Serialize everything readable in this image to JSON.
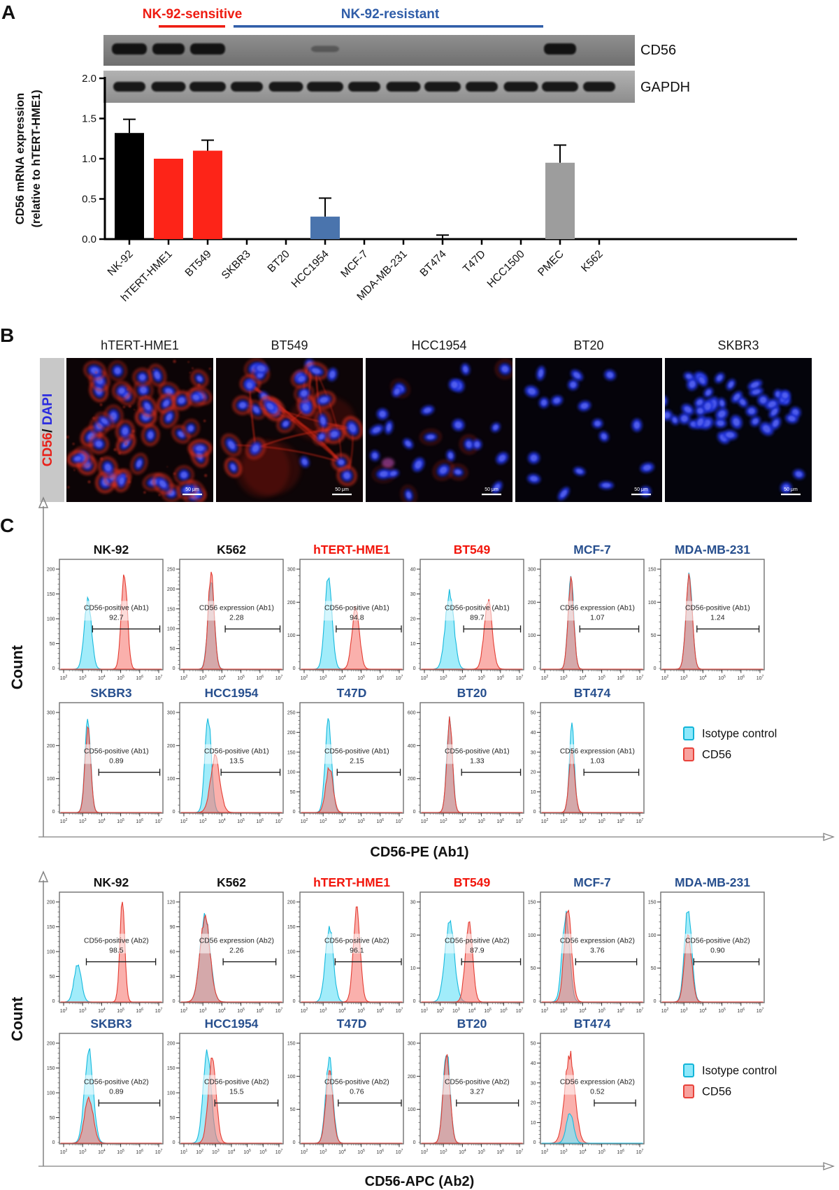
{
  "panelA": {
    "panel_label": "A",
    "group_labels": [
      {
        "text": "NK-92-sensitive",
        "color": "#ee1b11"
      },
      {
        "text": "NK-92-resistant",
        "color": "#2f5da8"
      }
    ],
    "gel_labels": [
      "CD56",
      "GAPDH"
    ],
    "gel_bands": {
      "cd56_strong_lanes": [
        0,
        1,
        2,
        11
      ],
      "cd56_faint_lanes": [
        5
      ],
      "gapdh_lanes": [
        0,
        1,
        2,
        3,
        4,
        5,
        6,
        7,
        8,
        9,
        10,
        11,
        12
      ]
    },
    "chart_data": {
      "type": "bar",
      "ylabel_line1": "CD56 mRNA expression",
      "ylabel_line2": "(relative to hTERT-HME1)",
      "ylim": [
        0,
        2.0
      ],
      "yticks": [
        "0.0",
        "0.5",
        "1.0",
        "1.5",
        "2.0"
      ],
      "categories": [
        "NK-92",
        "hTERT-HME1",
        "BT549",
        "SKBR3",
        "BT20",
        "HCC1954",
        "MCF-7",
        "MDA-MB-231",
        "BT474",
        "T47D",
        "HCC1500",
        "PMEC",
        "K562"
      ],
      "values": [
        1.32,
        1.0,
        1.1,
        0,
        0,
        0.28,
        0,
        0,
        0.01,
        0,
        0,
        0.95,
        0
      ],
      "errors": [
        0.17,
        0,
        0.13,
        0,
        0,
        0.23,
        0,
        0,
        0.04,
        0,
        0,
        0.22,
        0
      ],
      "colors": [
        "#000000",
        "#fd2418",
        "#fd2418",
        "#000000",
        "#000000",
        "#4a74ad",
        "#000000",
        "#000000",
        "#000000",
        "#000000",
        "#000000",
        "#9d9d9d",
        "#000000"
      ]
    }
  },
  "panelB": {
    "panel_label": "B",
    "stain_label": {
      "cd56": "CD56",
      "sep": "/ ",
      "dapi": "DAPI"
    },
    "stain_colors": {
      "cd56": "#e8211a",
      "sep": "#111111",
      "dapi": "#2a2ae0"
    },
    "scale_bar": "50 μm",
    "images": [
      {
        "title": "hTERT-HME1",
        "stain": "strong",
        "nuclei": 46,
        "bg": "#0c0406",
        "cluster": false
      },
      {
        "title": "BT549",
        "stain": "network",
        "nuclei": 30,
        "bg": "#0d0507",
        "cluster": false
      },
      {
        "title": "HCC1954",
        "stain": "faint",
        "nuclei": 26,
        "bg": "#080309",
        "cluster": false
      },
      {
        "title": "BT20",
        "stain": "none",
        "nuclei": 18,
        "bg": "#05030a",
        "cluster": false
      },
      {
        "title": "SKBR3",
        "stain": "none",
        "nuclei": 44,
        "bg": "#04040b",
        "cluster": true
      }
    ]
  },
  "panelC": {
    "panel_label": "C",
    "count_label": "Count",
    "legend": [
      {
        "label": "Isotype control",
        "fill": "#8ce8fb",
        "stroke": "#12b5d8"
      },
      {
        "label": "CD56",
        "fill": "#f8a29e",
        "stroke": "#e8423a"
      }
    ],
    "hist_colors": {
      "cyan_fill": "rgba(125,228,248,0.72)",
      "cyan_stroke": "#17b9dd",
      "red_fill": "rgba(247,124,117,0.60)",
      "red_stroke": "#e43d33"
    },
    "sets": [
      {
        "xlabel": "CD56-PE (Ab1)",
        "plots": [
          {
            "title": "NK-92",
            "tc": "#111111",
            "label": "CD56-positive (Ab1)",
            "value": "92.7",
            "yticks": [
              50,
              100,
              150,
              200
            ],
            "xexp": [
              2,
              7
            ],
            "peaks": [
              {
                "c": "cyan",
                "x": 0.27,
                "h": 0.69,
                "w": 0.05
              },
              {
                "c": "red",
                "x": 0.63,
                "h": 0.96,
                "w": 0.042
              }
            ],
            "gate": [
              0.32,
              0.97
            ]
          },
          {
            "title": "K562",
            "tc": "#111111",
            "label": "CD56 expression (Ab1)",
            "value": "2.28",
            "yticks": [
              50,
              100,
              150,
              200,
              250
            ],
            "xexp": [
              2,
              7
            ],
            "peaks": [
              {
                "c": "cyan",
                "x": 0.3,
                "h": 0.86,
                "w": 0.045
              },
              {
                "c": "red",
                "x": 0.3,
                "h": 0.96,
                "w": 0.043
              }
            ],
            "gate": [
              0.44,
              0.97
            ]
          },
          {
            "title": "hTERT-HME1",
            "tc": "#f2150b",
            "label": "CD56-positive (Ab1)",
            "value": "94.8",
            "yticks": [
              100,
              200,
              300
            ],
            "xexp": [
              2,
              7
            ],
            "peaks": [
              {
                "c": "cyan",
                "x": 0.27,
                "h": 0.93,
                "w": 0.05
              },
              {
                "c": "red",
                "x": 0.54,
                "h": 0.6,
                "w": 0.052
              }
            ],
            "gate": [
              0.35,
              0.98
            ]
          },
          {
            "title": "BT549",
            "tc": "#f2150b",
            "label": "CD56-positive (Ab1)",
            "value": "89.7",
            "yticks": [
              10,
              20,
              30,
              40
            ],
            "xexp": [
              2,
              7
            ],
            "peaks": [
              {
                "c": "cyan",
                "x": 0.28,
                "h": 0.76,
                "w": 0.06
              },
              {
                "c": "red",
                "x": 0.66,
                "h": 0.68,
                "w": 0.055
              }
            ],
            "gate": [
              0.42,
              0.97
            ]
          },
          {
            "title": "MCF-7",
            "tc": "#274f8e",
            "label": "CD56 expression (Ab1)",
            "value": "1.07",
            "yticks": [
              100,
              200,
              300
            ],
            "xexp": [
              2,
              7
            ],
            "peaks": [
              {
                "c": "cyan",
                "x": 0.29,
                "h": 0.93,
                "w": 0.04
              },
              {
                "c": "red",
                "x": 0.29,
                "h": 0.88,
                "w": 0.04
              }
            ],
            "gate": [
              0.38,
              0.95
            ]
          },
          {
            "title": "MDA-MB-231",
            "tc": "#274f8e",
            "label": "CD56-positive (Ab1)",
            "value": "1.24",
            "yticks": [
              50,
              100,
              150
            ],
            "xexp": [
              2,
              7
            ],
            "peaks": [
              {
                "c": "cyan",
                "x": 0.27,
                "h": 0.92,
                "w": 0.045
              },
              {
                "c": "red",
                "x": 0.27,
                "h": 0.9,
                "w": 0.045
              }
            ],
            "gate": [
              0.35,
              0.95
            ]
          },
          {
            "title": "SKBR3",
            "tc": "#274f8e",
            "label": "CD56-positive (Ab1)",
            "value": "0.89",
            "yticks": [
              100,
              200,
              300
            ],
            "xexp": [
              2,
              7
            ],
            "peaks": [
              {
                "c": "cyan",
                "x": 0.27,
                "h": 0.93,
                "w": 0.04
              },
              {
                "c": "red",
                "x": 0.27,
                "h": 0.82,
                "w": 0.04
              }
            ],
            "gate": [
              0.38,
              0.97
            ]
          },
          {
            "title": "HCC1954",
            "tc": "#274f8e",
            "label": "CD56-positive (Ab1)",
            "value": "13.5",
            "yticks": [
              100,
              200,
              300
            ],
            "xexp": [
              2,
              7
            ],
            "peaks": [
              {
                "c": "cyan",
                "x": 0.27,
                "h": 0.93,
                "w": 0.045
              },
              {
                "c": "red",
                "x": 0.34,
                "h": 0.55,
                "w": 0.065
              }
            ],
            "gate": [
              0.4,
              0.97
            ]
          },
          {
            "title": "T47D",
            "tc": "#274f8e",
            "label": "CD56-positive (Ab1)",
            "value": "2.15",
            "yticks": [
              50,
              100,
              150,
              200,
              250
            ],
            "xexp": [
              2,
              7
            ],
            "peaks": [
              {
                "c": "cyan",
                "x": 0.27,
                "h": 0.9,
                "w": 0.045
              },
              {
                "c": "red",
                "x": 0.28,
                "h": 0.45,
                "w": 0.05
              }
            ],
            "gate": [
              0.36,
              0.97
            ]
          },
          {
            "title": "BT20",
            "tc": "#274f8e",
            "label": "CD56-positive (Ab1)",
            "value": "1.33",
            "yticks": [
              200,
              400,
              600
            ],
            "xexp": [
              2,
              7
            ],
            "peaks": [
              {
                "c": "cyan",
                "x": 0.28,
                "h": 0.93,
                "w": 0.04
              },
              {
                "c": "red",
                "x": 0.28,
                "h": 0.91,
                "w": 0.04
              }
            ],
            "gate": [
              0.4,
              0.97
            ]
          },
          {
            "title": "BT474",
            "tc": "#274f8e",
            "label": "CD56 expression (Ab1)",
            "value": "1.03",
            "yticks": [
              10,
              20,
              30,
              40,
              50
            ],
            "xexp": [
              2,
              7
            ],
            "peaks": [
              {
                "c": "cyan",
                "x": 0.3,
                "h": 0.86,
                "w": 0.035
              },
              {
                "c": "red",
                "x": 0.3,
                "h": 0.6,
                "w": 0.04
              }
            ],
            "gate": [
              0.42,
              0.95
            ]
          }
        ]
      },
      {
        "xlabel": "CD56-APC (Ab2)",
        "plots": [
          {
            "title": "NK-92",
            "tc": "#111111",
            "label": "CD56-positive (Ab2)",
            "value": "98.5",
            "yticks": [
              50,
              100,
              150,
              200
            ],
            "xexp": [
              2,
              7
            ],
            "peaks": [
              {
                "c": "cyan",
                "x": 0.17,
                "h": 0.38,
                "w": 0.05
              },
              {
                "c": "red",
                "x": 0.61,
                "h": 0.98,
                "w": 0.035
              }
            ],
            "gate": [
              0.26,
              0.93
            ]
          },
          {
            "title": "K562",
            "tc": "#111111",
            "label": "CD56 expression (Ab2)",
            "value": "2.26",
            "yticks": [
              30,
              60,
              90,
              120
            ],
            "xexp": [
              2,
              7
            ],
            "peaks": [
              {
                "c": "cyan",
                "x": 0.24,
                "h": 0.86,
                "w": 0.07
              },
              {
                "c": "red",
                "x": 0.24,
                "h": 0.83,
                "w": 0.07
              }
            ],
            "gate": [
              0.42,
              0.93
            ]
          },
          {
            "title": "hTERT-HME1",
            "tc": "#f2150b",
            "label": "CD56-positive (Ab2)",
            "value": "96.1",
            "yticks": [
              50,
              100,
              150,
              200
            ],
            "xexp": [
              2,
              7
            ],
            "peaks": [
              {
                "c": "cyan",
                "x": 0.28,
                "h": 0.74,
                "w": 0.055
              },
              {
                "c": "red",
                "x": 0.55,
                "h": 0.91,
                "w": 0.048
              }
            ],
            "gate": [
              0.34,
              0.98
            ]
          },
          {
            "title": "BT549",
            "tc": "#f2150b",
            "label": "CD56-positive (Ab2)",
            "value": "87.9",
            "yticks": [
              10,
              20,
              30
            ],
            "xexp": [
              1,
              7
            ],
            "peaks": [
              {
                "c": "cyan",
                "x": 0.28,
                "h": 0.8,
                "w": 0.065
              },
              {
                "c": "red",
                "x": 0.47,
                "h": 0.8,
                "w": 0.05
              }
            ],
            "gate": [
              0.4,
              0.97
            ]
          },
          {
            "title": "MCF-7",
            "tc": "#274f8e",
            "label": "CD56 expression (Ab2)",
            "value": "3.76",
            "yticks": [
              50,
              100,
              150
            ],
            "xexp": [
              2,
              7
            ],
            "peaks": [
              {
                "c": "cyan",
                "x": 0.24,
                "h": 0.86,
                "w": 0.052
              },
              {
                "c": "red",
                "x": 0.26,
                "h": 0.91,
                "w": 0.052
              }
            ],
            "gate": [
              0.34,
              0.93
            ]
          },
          {
            "title": "MDA-MB-231",
            "tc": "#274f8e",
            "label": "CD56-positive (Ab2)",
            "value": "0.90",
            "yticks": [
              50,
              100,
              150
            ],
            "xexp": [
              2,
              7
            ],
            "peaks": [
              {
                "c": "cyan",
                "x": 0.26,
                "h": 0.95,
                "w": 0.05
              },
              {
                "c": "red",
                "x": 0.26,
                "h": 0.68,
                "w": 0.05
              }
            ],
            "gate": [
              0.32,
              0.95
            ]
          },
          {
            "title": "SKBR3",
            "tc": "#274f8e",
            "label": "CD56-positive (Ab2)",
            "value": "0.89",
            "yticks": [
              50,
              100,
              150,
              200
            ],
            "xexp": [
              2,
              7
            ],
            "peaks": [
              {
                "c": "cyan",
                "x": 0.28,
                "h": 0.92,
                "w": 0.06
              },
              {
                "c": "red",
                "x": 0.28,
                "h": 0.45,
                "w": 0.06
              }
            ],
            "gate": [
              0.38,
              0.97
            ]
          },
          {
            "title": "HCC1954",
            "tc": "#274f8e",
            "label": "CD56-positive (Ab2)",
            "value": "15.5",
            "yticks": [
              50,
              100,
              150,
              200
            ],
            "xexp": [
              1,
              7
            ],
            "peaks": [
              {
                "c": "cyan",
                "x": 0.26,
                "h": 0.93,
                "w": 0.055
              },
              {
                "c": "red",
                "x": 0.31,
                "h": 0.84,
                "w": 0.055
              }
            ],
            "gate": [
              0.34,
              0.95
            ]
          },
          {
            "title": "T47D",
            "tc": "#274f8e",
            "label": "CD56-positive (Ab2)",
            "value": "0.76",
            "yticks": [
              50,
              100,
              150
            ],
            "xexp": [
              2,
              7
            ],
            "peaks": [
              {
                "c": "cyan",
                "x": 0.28,
                "h": 0.84,
                "w": 0.05
              },
              {
                "c": "red",
                "x": 0.28,
                "h": 0.7,
                "w": 0.05
              }
            ],
            "gate": [
              0.37,
              0.98
            ]
          },
          {
            "title": "BT20",
            "tc": "#274f8e",
            "label": "CD56-positive (Ab2)",
            "value": "3.27",
            "yticks": [
              100,
              200,
              300
            ],
            "xexp": [
              2,
              7
            ],
            "peaks": [
              {
                "c": "cyan",
                "x": 0.25,
                "h": 0.93,
                "w": 0.048
              },
              {
                "c": "red",
                "x": 0.25,
                "h": 0.87,
                "w": 0.048
              }
            ],
            "gate": [
              0.35,
              0.95
            ]
          },
          {
            "title": "BT474",
            "tc": "#274f8e",
            "label": "CD56 expression (Ab2)",
            "value": "0.52",
            "yticks": [
              10,
              20,
              30,
              40,
              50
            ],
            "xexp": [
              2,
              7
            ],
            "peaks": [
              {
                "c": "red",
                "x": 0.28,
                "h": 0.88,
                "w": 0.07
              },
              {
                "c": "cyan",
                "x": 0.28,
                "h": 0.3,
                "w": 0.05
              }
            ],
            "gate": [
              0.52,
              0.92
            ]
          }
        ]
      }
    ]
  }
}
